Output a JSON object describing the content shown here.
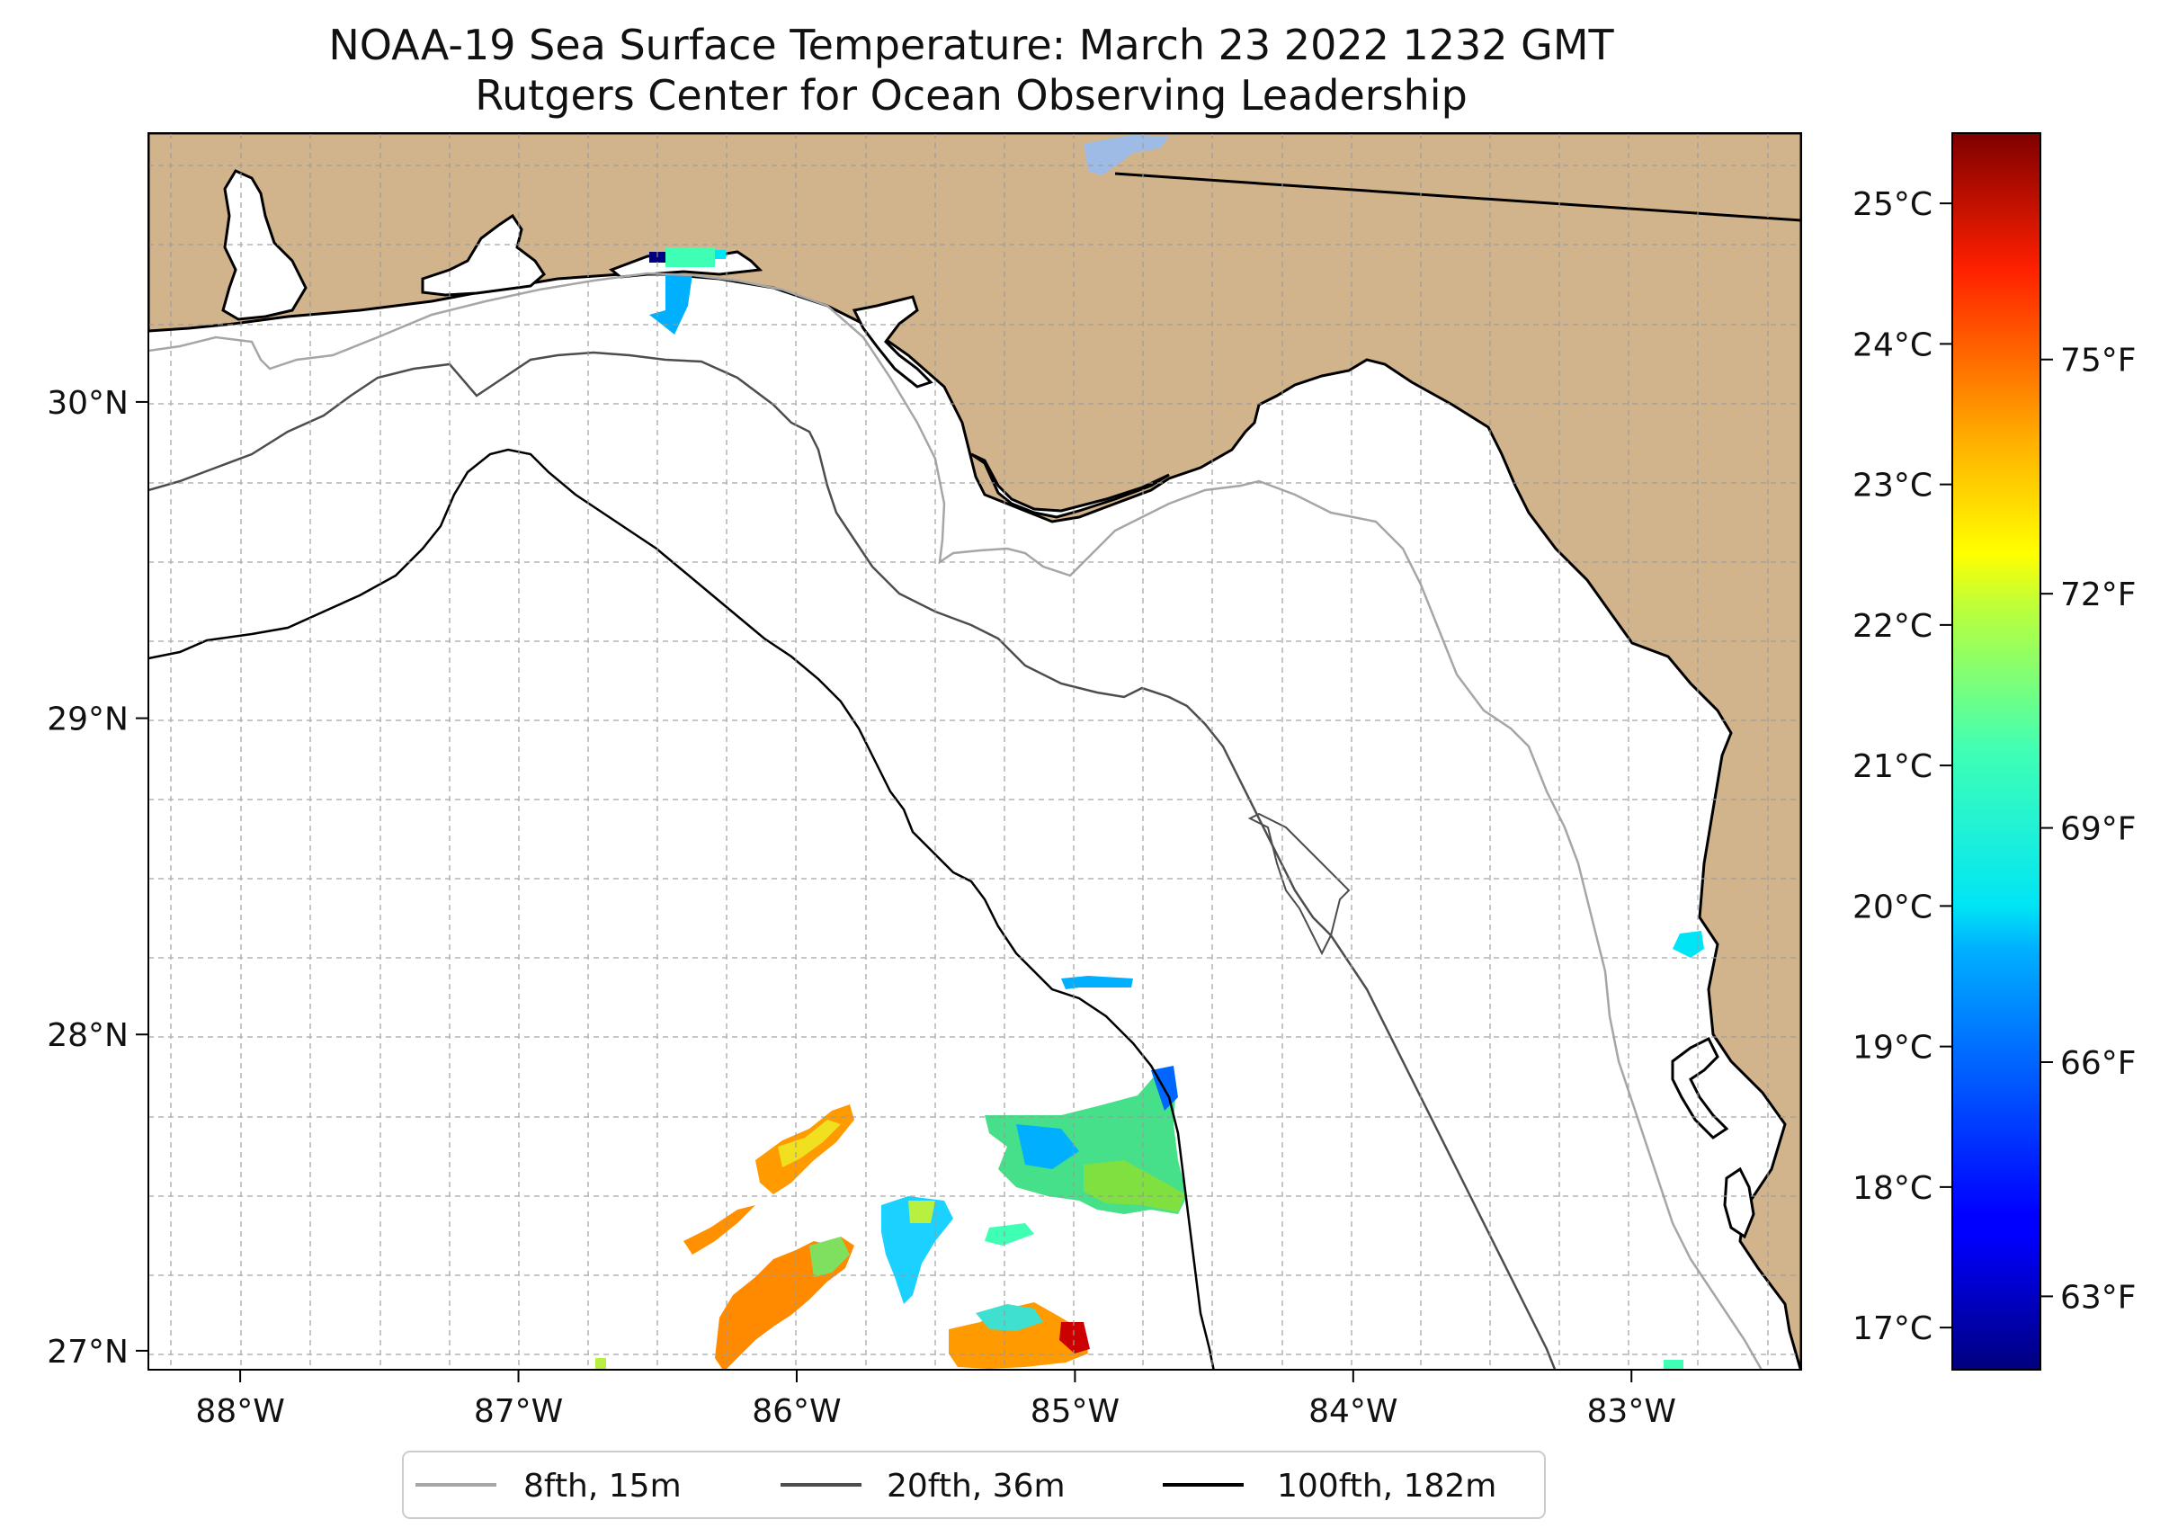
{
  "title": "NOAA-19 Sea Surface Temperature: March 23 2022 1232 GMT",
  "subtitle": "Rutgers Center for Ocean Observing Leadership",
  "map": {
    "lon_range": [
      -88.33,
      -82.39
    ],
    "lat_range": [
      26.94,
      30.85
    ],
    "lon_ticks": [
      {
        "value": -88,
        "label": "88°W"
      },
      {
        "value": -87,
        "label": "87°W"
      },
      {
        "value": -86,
        "label": "86°W"
      },
      {
        "value": -85,
        "label": "85°W"
      },
      {
        "value": -84,
        "label": "84°W"
      },
      {
        "value": -83,
        "label": "83°W"
      }
    ],
    "lat_ticks": [
      {
        "value": 27,
        "label": "27°N"
      },
      {
        "value": 28,
        "label": "28°N"
      },
      {
        "value": 29,
        "label": "29°N"
      },
      {
        "value": 30,
        "label": "30°N"
      }
    ],
    "gridlines": true,
    "land_color": "#d2b48c",
    "ocean_color": "#ffffff"
  },
  "legend": {
    "placement": "bottom-center",
    "items": [
      {
        "label": "8fth, 15m",
        "color": "#a6a6a6"
      },
      {
        "label": "20fth, 36m",
        "color": "#4d4d4d"
      },
      {
        "label": "100fth, 182m",
        "color": "#000000"
      }
    ]
  },
  "colorbar": {
    "colormap": "jet",
    "min_c": 16.7,
    "max_c": 25.5,
    "celsius_ticks": [
      {
        "value": 17,
        "label": "17°C"
      },
      {
        "value": 18,
        "label": "18°C"
      },
      {
        "value": 19,
        "label": "19°C"
      },
      {
        "value": 20,
        "label": "20°C"
      },
      {
        "value": 21,
        "label": "21°C"
      },
      {
        "value": 22,
        "label": "22°C"
      },
      {
        "value": 23,
        "label": "23°C"
      },
      {
        "value": 24,
        "label": "24°C"
      },
      {
        "value": 25,
        "label": "25°C"
      }
    ],
    "fahrenheit_ticks": [
      {
        "value": 63,
        "label": "63°F"
      },
      {
        "value": 66,
        "label": "66°F"
      },
      {
        "value": 69,
        "label": "69°F"
      },
      {
        "value": 72,
        "label": "72°F"
      },
      {
        "value": 75,
        "label": "75°F"
      }
    ]
  }
}
